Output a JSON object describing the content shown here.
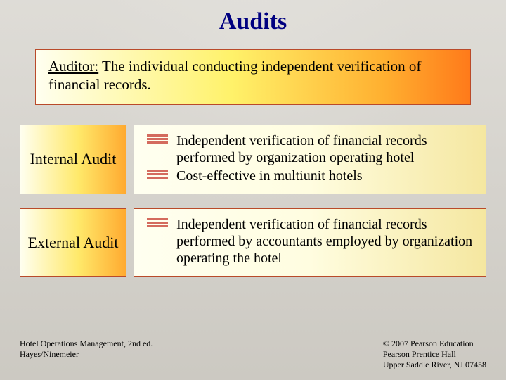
{
  "colors": {
    "title": "#000080",
    "box_border": "#b94a2a",
    "grad_def": [
      "#fffff0",
      "#fff26a",
      "#ffb030",
      "#ff7a1a"
    ],
    "grad_label": [
      "#fffff0",
      "#ffe96a",
      "#ffaa30"
    ],
    "grad_body": [
      "#fffff0",
      "#fffde0",
      "#f5e7a0"
    ],
    "bullet": "#c63a2e",
    "background": "#d8d5d0"
  },
  "typography": {
    "family": "Times New Roman",
    "title_size_pt": 26,
    "def_size_pt": 16,
    "label_size_pt": 17,
    "body_size_pt": 15,
    "footer_size_pt": 9
  },
  "title": "Audits",
  "definition": {
    "term": "Auditor:",
    "text": " The individual conducting independent verification of financial records."
  },
  "rows": [
    {
      "label": "Internal Audit",
      "items": [
        "Independent verification of financial records performed by organization operating hotel",
        "Cost-effective in multiunit hotels"
      ]
    },
    {
      "label": "External Audit",
      "items": [
        "Independent verification of financial records performed by accountants employed by organization operating the hotel"
      ]
    }
  ],
  "footer": {
    "left_line1": "Hotel Operations Management, 2nd ed.",
    "left_line2": "Hayes/Ninemeier",
    "right_line1": "© 2007 Pearson Education",
    "right_line2": "Pearson Prentice Hall",
    "right_line3": "Upper Saddle River, NJ 07458"
  }
}
